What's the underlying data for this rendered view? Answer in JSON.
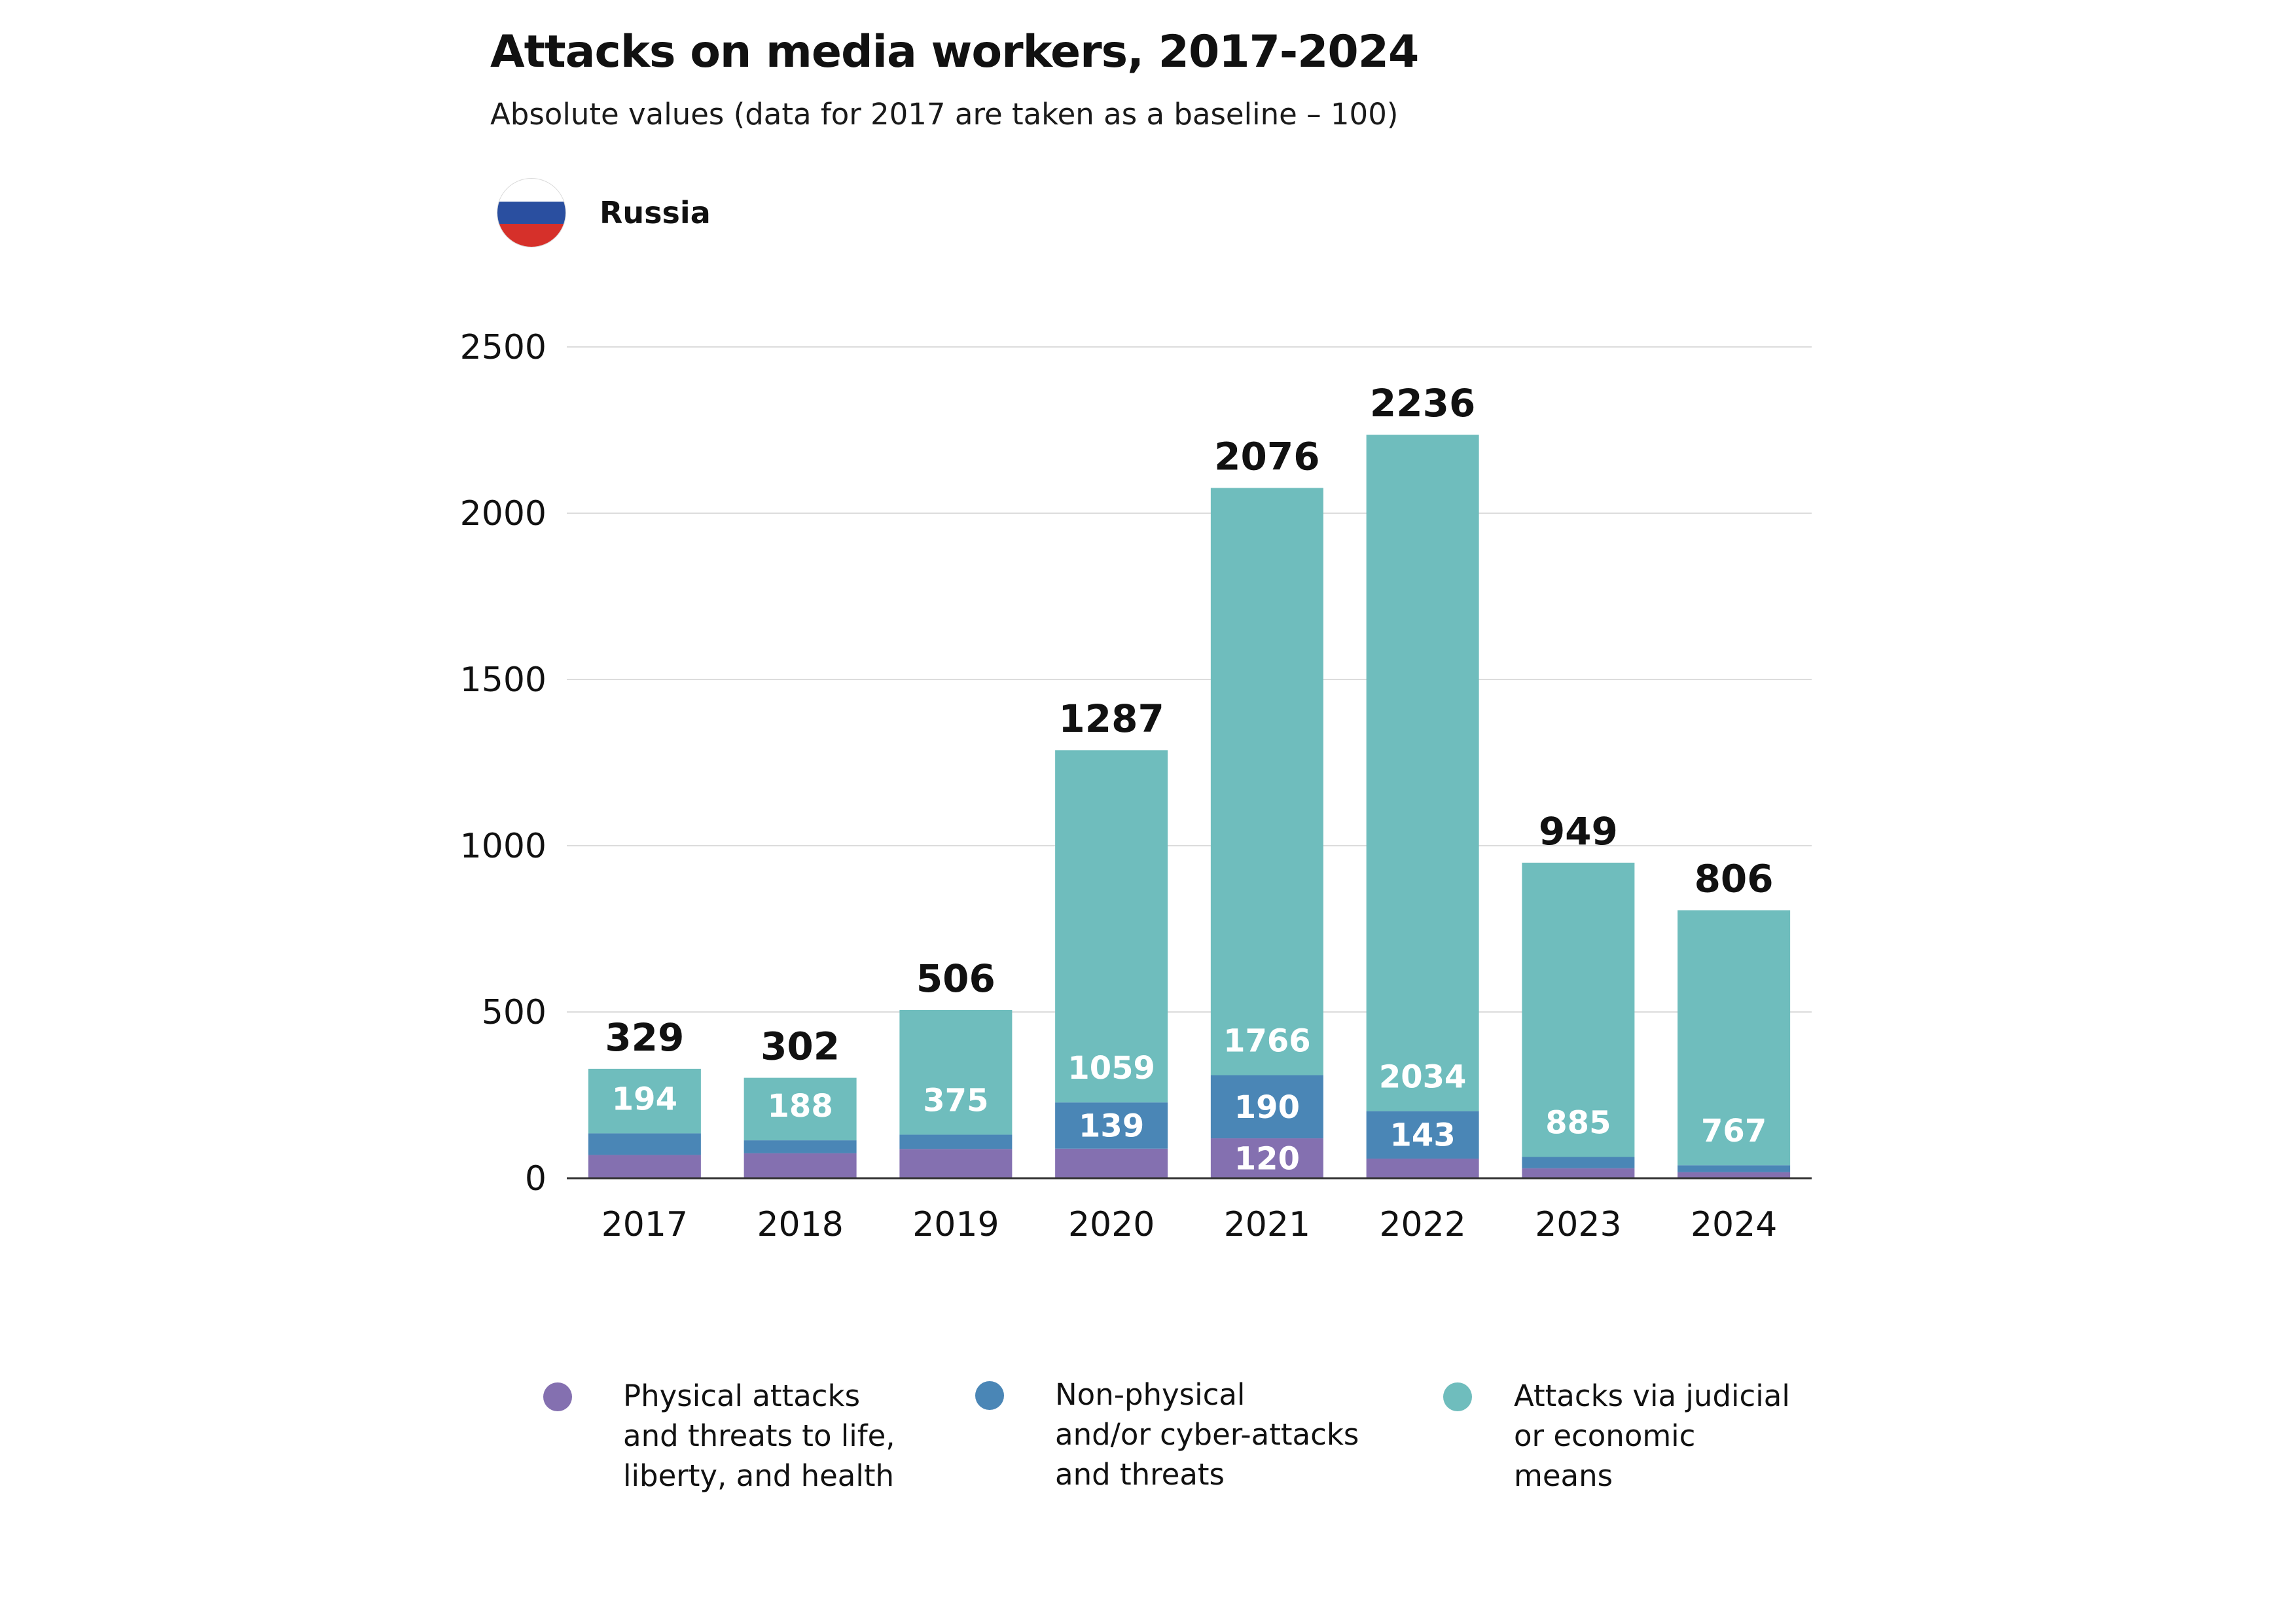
{
  "header": {
    "title": "Attacks on media workers, 2017-2024",
    "subtitle": "Absolute values (data for 2017 are taken as a baseline – 100)"
  },
  "country": {
    "label": "Russia",
    "flag_colors": [
      "#ffffff",
      "#2a4fa0",
      "#d6302a"
    ]
  },
  "legend": [
    {
      "label": "Physical attacks\nand threats to life,\nliberty, and health",
      "color": "#8470b0"
    },
    {
      "label": "Non-physical\nand/or cyber-attacks\nand threats",
      "color": "#4a86b6"
    },
    {
      "label": "Attacks via judicial\nor economic\nmeans",
      "color": "#6fbdbd"
    }
  ],
  "chart_data": {
    "type": "bar",
    "stacked": true,
    "categories": [
      "2017",
      "2018",
      "2019",
      "2020",
      "2021",
      "2022",
      "2023",
      "2024"
    ],
    "series": [
      {
        "name": "Physical attacks and threats to life, liberty, and health",
        "color": "#8470b0",
        "values": [
          70,
          75,
          88,
          89,
          120,
          59,
          30,
          18
        ],
        "labels": [
          "",
          "",
          "",
          "",
          "120",
          "",
          "",
          ""
        ]
      },
      {
        "name": "Non-physical and/or cyber-attacks and threats",
        "color": "#4a86b6",
        "values": [
          65,
          39,
          43,
          139,
          190,
          143,
          34,
          21
        ],
        "labels": [
          "",
          "",
          "",
          "139",
          "190",
          "143",
          "",
          ""
        ]
      },
      {
        "name": "Attacks via judicial or economic means",
        "color": "#6fbdbd",
        "values": [
          194,
          188,
          375,
          1059,
          1766,
          2034,
          885,
          767
        ],
        "labels": [
          "194",
          "188",
          "375",
          "1059",
          "1766",
          "2034",
          "885",
          "767"
        ]
      }
    ],
    "totals": [
      329,
      302,
      506,
      1287,
      2076,
      2236,
      949,
      806
    ],
    "yticks": [
      0,
      500,
      1000,
      1500,
      2000,
      2500
    ],
    "ylim": [
      0,
      2500
    ],
    "grid": true,
    "legend_position": "bottom"
  }
}
